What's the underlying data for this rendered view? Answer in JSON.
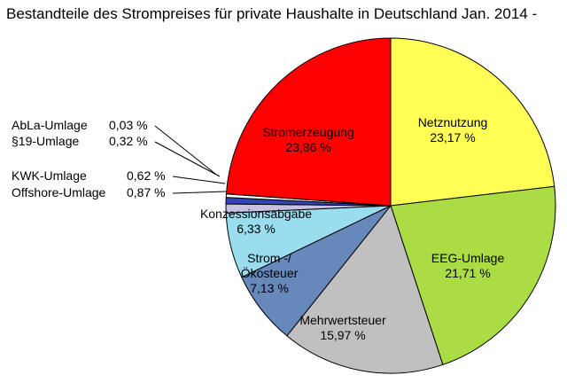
{
  "chart_data": {
    "type": "pie",
    "title": "Bestandteile des Strompreises für private Haushalte in Deutschland Jan. 2014 -",
    "slices": [
      {
        "name": "Netznutzung",
        "value": 23.17,
        "label": "23,17 %",
        "color": "#ffff55"
      },
      {
        "name": "EEG-Umlage",
        "value": 21.71,
        "label": "21,71 %",
        "color": "#aadd44"
      },
      {
        "name": "Mehrwertsteuer",
        "value": 15.97,
        "label": "15,97 %",
        "color": "#c0c0c0"
      },
      {
        "name": "Strom -/ Ökosteuer",
        "value": 7.13,
        "label": "7,13 %",
        "color": "#6688bb"
      },
      {
        "name": "Konzessionsabgabe",
        "value": 6.33,
        "label": "6,33 %",
        "color": "#99ddee"
      },
      {
        "name": "Offshore-Umlage",
        "value": 0.87,
        "label": "0,87 %",
        "color": "#c8c0e0"
      },
      {
        "name": "KWK-Umlage",
        "value": 0.62,
        "label": "0,62 %",
        "color": "#3344bb"
      },
      {
        "name": "§19-Umlage",
        "value": 0.32,
        "label": "0,32 %",
        "color": "#ffffff"
      },
      {
        "name": "AbLa-Umlage",
        "value": 0.03,
        "label": "0,03 %",
        "color": "#aa2222"
      },
      {
        "name": "Stromerzeugung",
        "value": 23.86,
        "label": "23,86 %",
        "color": "#ff0000"
      }
    ]
  }
}
